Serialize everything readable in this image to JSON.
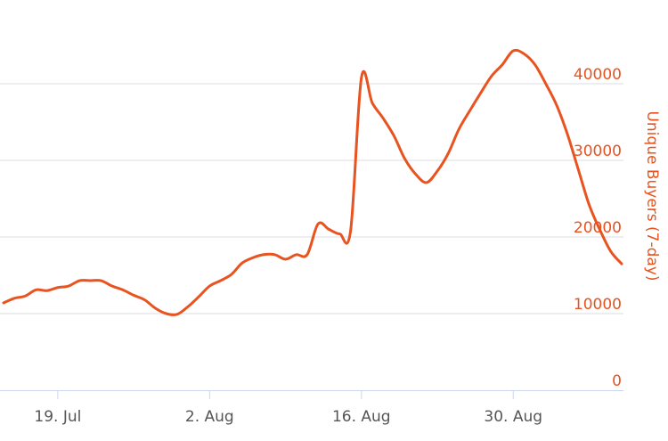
{
  "chart_data": {
    "type": "line",
    "y_axis_label": "Unique Buyers (7-day)",
    "x": [
      "14. Jul",
      "15. Jul",
      "16. Jul",
      "17. Jul",
      "18. Jul",
      "19. Jul",
      "20. Jul",
      "21. Jul",
      "22. Jul",
      "23. Jul",
      "24. Jul",
      "25. Jul",
      "26. Jul",
      "27. Jul",
      "28. Jul",
      "29. Jul",
      "30. Jul",
      "31. Jul",
      "1. Aug",
      "2. Aug",
      "3. Aug",
      "4. Aug",
      "5. Aug",
      "6. Aug",
      "7. Aug",
      "8. Aug",
      "9. Aug",
      "10. Aug",
      "11. Aug",
      "12. Aug",
      "13. Aug",
      "14. Aug",
      "15. Aug",
      "16. Aug",
      "17. Aug",
      "18. Aug",
      "19. Aug",
      "20. Aug",
      "21. Aug",
      "22. Aug",
      "23. Aug",
      "24. Aug",
      "25. Aug",
      "26. Aug",
      "27. Aug",
      "28. Aug",
      "29. Aug",
      "30. Aug",
      "31. Aug",
      "1. Sep",
      "2. Sep",
      "3. Sep",
      "4. Sep",
      "5. Sep",
      "6. Sep",
      "7. Sep",
      "8. Sep",
      "9. Sep"
    ],
    "xticks": [
      "19. Jul",
      "2. Aug",
      "16. Aug",
      "30. Aug"
    ],
    "series": [
      {
        "name": "Unique Buyers (7-day)",
        "color": "#e8531f",
        "values": [
          11400,
          12000,
          12300,
          13100,
          13000,
          13400,
          13600,
          14300,
          14300,
          14300,
          13600,
          13100,
          12400,
          11800,
          10700,
          10000,
          9900,
          10900,
          12200,
          13600,
          14300,
          15100,
          16600,
          17300,
          17700,
          17700,
          17100,
          17700,
          17700,
          21700,
          21000,
          20400,
          20800,
          40800,
          37500,
          35500,
          33200,
          30200,
          28200,
          27100,
          28600,
          30900,
          34100,
          36500,
          38800,
          41000,
          42500,
          44300,
          43900,
          42500,
          40000,
          37200,
          33400,
          28800,
          24200,
          20900,
          18100,
          16500
        ]
      }
    ],
    "ylim": [
      0,
      50000
    ],
    "yticks": [
      0,
      10000,
      20000,
      30000,
      40000
    ],
    "y_axis_side": "right",
    "grid": true
  }
}
